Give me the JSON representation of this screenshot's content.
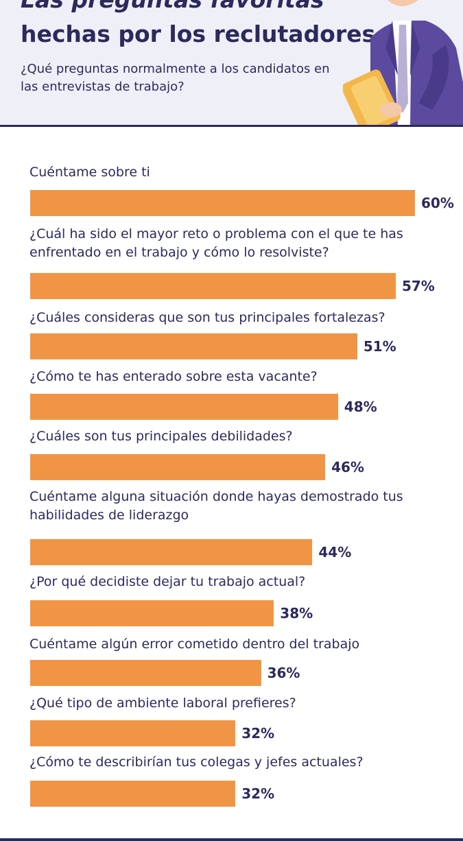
{
  "header": {
    "title_cut": "Las preguntas favoritas",
    "title": "hechas por los reclutadores",
    "subtitle": "¿Qué preguntas normalmente a los candidatos en las entrevistas de trabajo?"
  },
  "colors": {
    "bar": "#f09545",
    "text": "#2b2a5c",
    "header_bg": "#efeff8"
  },
  "chart_data": {
    "type": "bar",
    "orientation": "horizontal",
    "unit": "%",
    "xlim": [
      0,
      60
    ],
    "categories": [
      "Cuéntame sobre ti",
      "¿Cuál ha sido el mayor reto o problema con el que te has enfrentado en el trabajo y cómo lo resolviste?",
      "¿Cuáles consideras que son tus principales fortalezas?",
      "¿Cómo te has enterado sobre esta vacante?",
      "¿Cuáles son tus principales debilidades?",
      "Cuéntame alguna situación donde hayas demostrado tus habilidades de liderazgo",
      "¿Por qué decidiste dejar tu trabajo actual?",
      "Cuéntame algún error cometido dentro del trabajo",
      "¿Qué tipo de ambiente laboral prefieres?",
      "¿Cómo te describirían tus colegas y jefes actuales?"
    ],
    "values": [
      60,
      57,
      51,
      48,
      46,
      44,
      38,
      36,
      32,
      32
    ],
    "labels": [
      "60%",
      "57%",
      "51%",
      "48%",
      "46%",
      "44%",
      "38%",
      "36%",
      "32%",
      "32%"
    ]
  }
}
